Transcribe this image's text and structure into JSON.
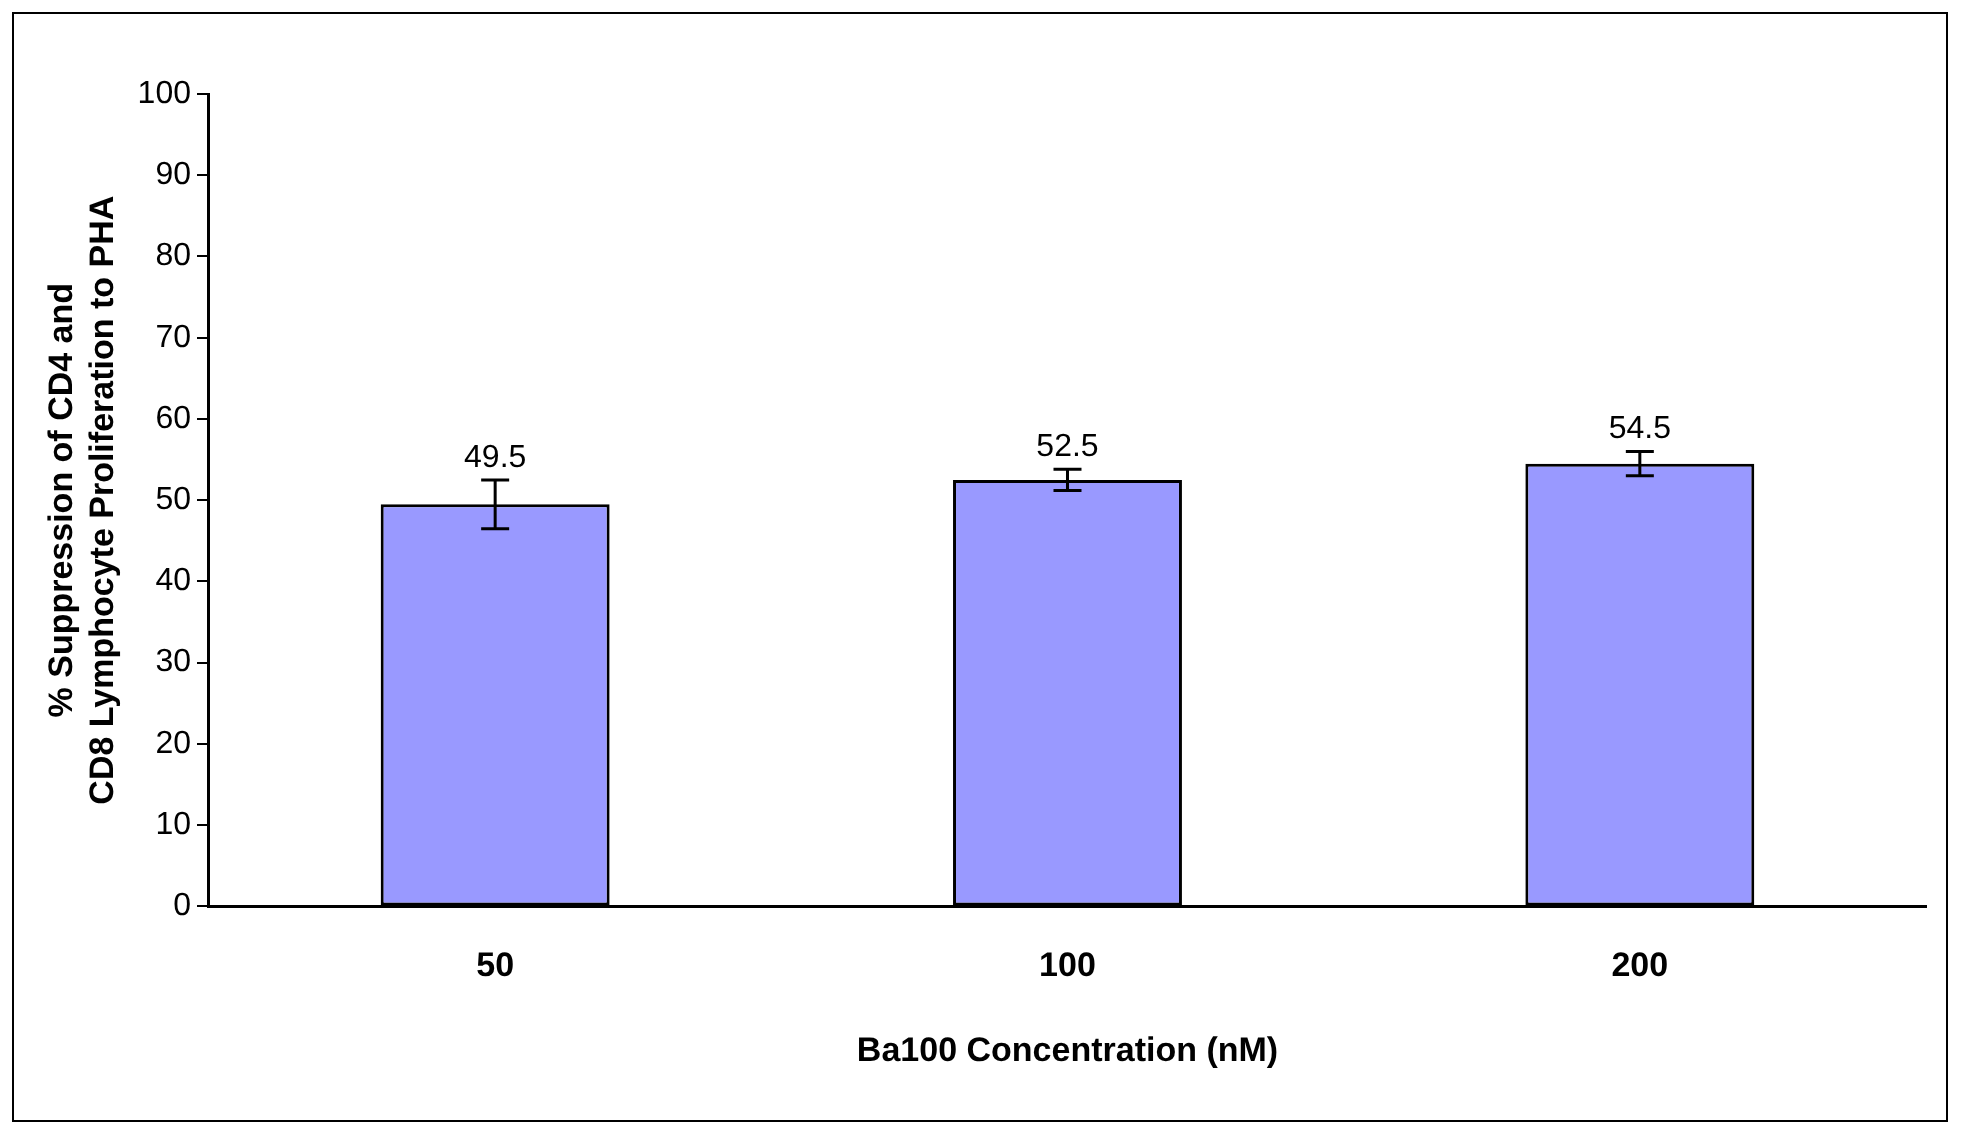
{
  "chart_data": {
    "type": "bar",
    "xlabel": "Ba100 Concentration (nM)",
    "ylabel": "% Suppression of CD4 and CD8 Lymphocyte Proliferation to PHA",
    "categories": [
      "50",
      "100",
      "200"
    ],
    "values": [
      49.5,
      52.5,
      54.5
    ],
    "errors": [
      3,
      1.3,
      1.5
    ],
    "color": "#9999ff",
    "ylim": [
      0,
      100
    ],
    "yticks": [
      0,
      10,
      20,
      30,
      40,
      50,
      60,
      70,
      80,
      90,
      100
    ],
    "data_labels": true,
    "grid": false,
    "legend": false
  }
}
